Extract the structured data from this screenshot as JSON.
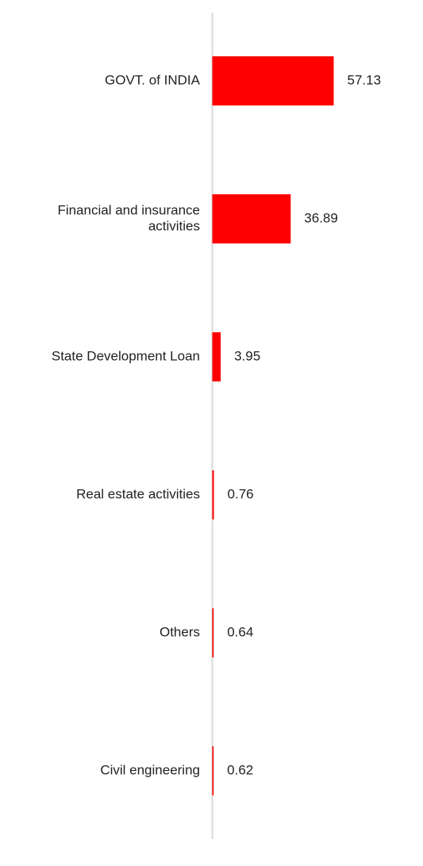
{
  "chart_data": {
    "type": "bar",
    "orientation": "horizontal",
    "categories": [
      "GOVT. of INDIA",
      "Financial and insurance activities",
      "State Development Loan",
      "Real estate activities",
      "Others",
      "Civil engineering"
    ],
    "category_lines": [
      [
        "GOVT. of INDIA"
      ],
      [
        "Financial and insurance",
        "activities"
      ],
      [
        "State Development Loan"
      ],
      [
        "Real estate activities"
      ],
      [
        "Others"
      ],
      [
        "Civil engineering"
      ]
    ],
    "values": [
      57.13,
      36.89,
      3.95,
      0.76,
      0.64,
      0.62
    ],
    "value_labels": [
      "57.13",
      "36.89",
      "3.95",
      "0.76",
      "0.64",
      "0.62"
    ],
    "title": "",
    "xlabel": "",
    "ylabel": "",
    "grid": false,
    "legend": "none",
    "colors": {
      "bar": "#ff0000",
      "axis": "#d9d9d9",
      "text": "#222222"
    }
  }
}
